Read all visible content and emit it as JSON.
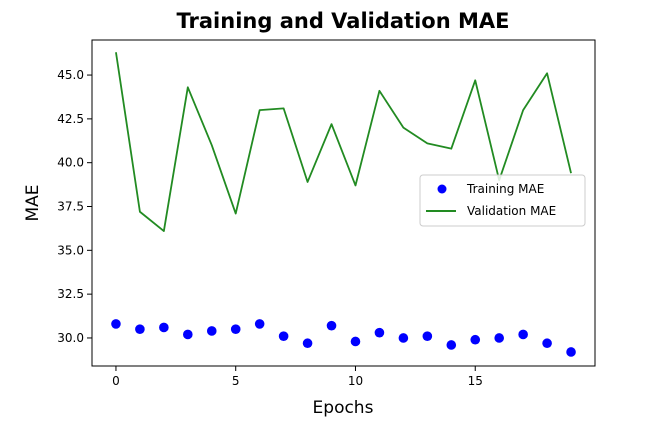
{
  "chart_data": {
    "type": "line",
    "title": "Training and Validation MAE",
    "xlabel": "Epochs",
    "ylabel": "MAE",
    "xlim": [
      -1,
      20
    ],
    "ylim": [
      28.4,
      47.0
    ],
    "x": [
      0,
      1,
      2,
      3,
      4,
      5,
      6,
      7,
      8,
      9,
      10,
      11,
      12,
      13,
      14,
      15,
      16,
      17,
      18,
      19
    ],
    "xticks": [
      0,
      5,
      10,
      15
    ],
    "yticks": [
      30.0,
      32.5,
      35.0,
      37.5,
      40.0,
      42.5,
      45.0
    ],
    "grid": false,
    "legend_position": "center-right",
    "series": [
      {
        "name": "Training MAE",
        "style": "points",
        "color": "#0000ff",
        "values": [
          30.8,
          30.5,
          30.6,
          30.2,
          30.4,
          30.5,
          30.8,
          30.1,
          29.7,
          30.7,
          29.8,
          30.3,
          30.0,
          30.1,
          29.6,
          29.9,
          30.0,
          30.2,
          29.7,
          29.2
        ]
      },
      {
        "name": "Validation MAE",
        "style": "line",
        "color": "#228b22",
        "values": [
          46.3,
          37.2,
          36.1,
          44.3,
          41.0,
          37.1,
          43.0,
          43.1,
          38.9,
          42.2,
          38.7,
          44.1,
          42.0,
          41.1,
          40.8,
          44.7,
          39.0,
          43.0,
          45.1,
          39.4
        ]
      }
    ]
  }
}
